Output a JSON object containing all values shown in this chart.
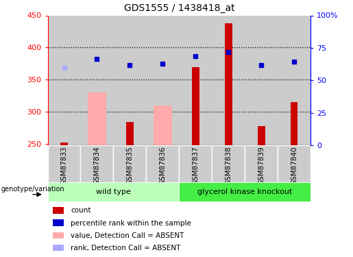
{
  "title": "GDS1555 / 1438418_at",
  "samples": [
    "GSM87833",
    "GSM87834",
    "GSM87835",
    "GSM87836",
    "GSM87837",
    "GSM87838",
    "GSM87839",
    "GSM87840"
  ],
  "count_values": [
    252,
    null,
    284,
    null,
    370,
    438,
    278,
    315
  ],
  "pink_bar_values": [
    null,
    330,
    null,
    310,
    null,
    null,
    null,
    null
  ],
  "blue_square_values": [
    null,
    382,
    373,
    375,
    387,
    393,
    373,
    378
  ],
  "light_blue_square_values": [
    368,
    null,
    null,
    null,
    null,
    null,
    null,
    null
  ],
  "ylim_left": [
    248,
    450
  ],
  "ylim_right": [
    0,
    100
  ],
  "yticks_left": [
    250,
    300,
    350,
    400,
    450
  ],
  "ytick_labels_left": [
    "250",
    "300",
    "350",
    "400",
    "450"
  ],
  "yticks_right_vals": [
    0,
    25,
    50,
    75,
    100
  ],
  "ytick_labels_right": [
    "0",
    "25",
    "50",
    "75",
    "100%"
  ],
  "bar_color_red": "#cc0000",
  "bar_color_pink": "#ffaaaa",
  "blue_square_color": "#0000cc",
  "light_blue_square_color": "#aaaaff",
  "col_bg_color": "#cccccc",
  "plot_bg_color": "#ffffff",
  "wt_color_light": "#bbffbb",
  "gk_color_dark": "#44ee44",
  "genotype_label": "genotype/variation",
  "legend_items": [
    {
      "color": "#cc0000",
      "label": "count"
    },
    {
      "color": "#0000cc",
      "label": "percentile rank within the sample"
    },
    {
      "color": "#ffaaaa",
      "label": "value, Detection Call = ABSENT"
    },
    {
      "color": "#aaaaff",
      "label": "rank, Detection Call = ABSENT"
    }
  ]
}
